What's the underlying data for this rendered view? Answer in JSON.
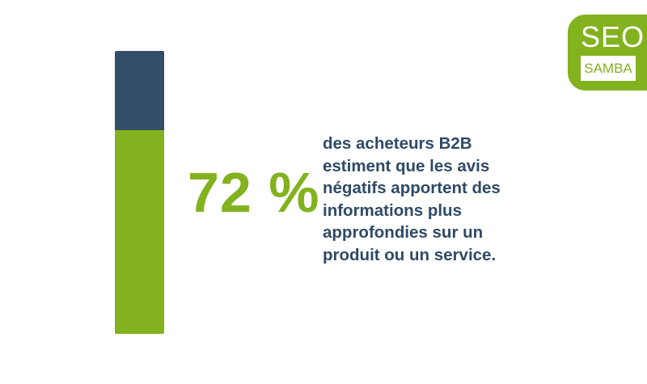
{
  "chart_data": {
    "type": "bar",
    "values": [
      72
    ],
    "unit": "%",
    "ylim": [
      0,
      100
    ],
    "value_label": "72 %",
    "caption_lines": [
      "des acheteurs B2B",
      "estiment que les avis",
      "négatifs apportent des",
      "informations plus",
      "approfondies sur un",
      "produit ou un service."
    ]
  },
  "logo": {
    "top_text": "SEO",
    "bottom_text": "SAMBA"
  },
  "colors": {
    "accent_green": "#82b21e",
    "dark_navy": "#344e68",
    "text_navy": "#2e4a66",
    "background": "#ffffff"
  }
}
